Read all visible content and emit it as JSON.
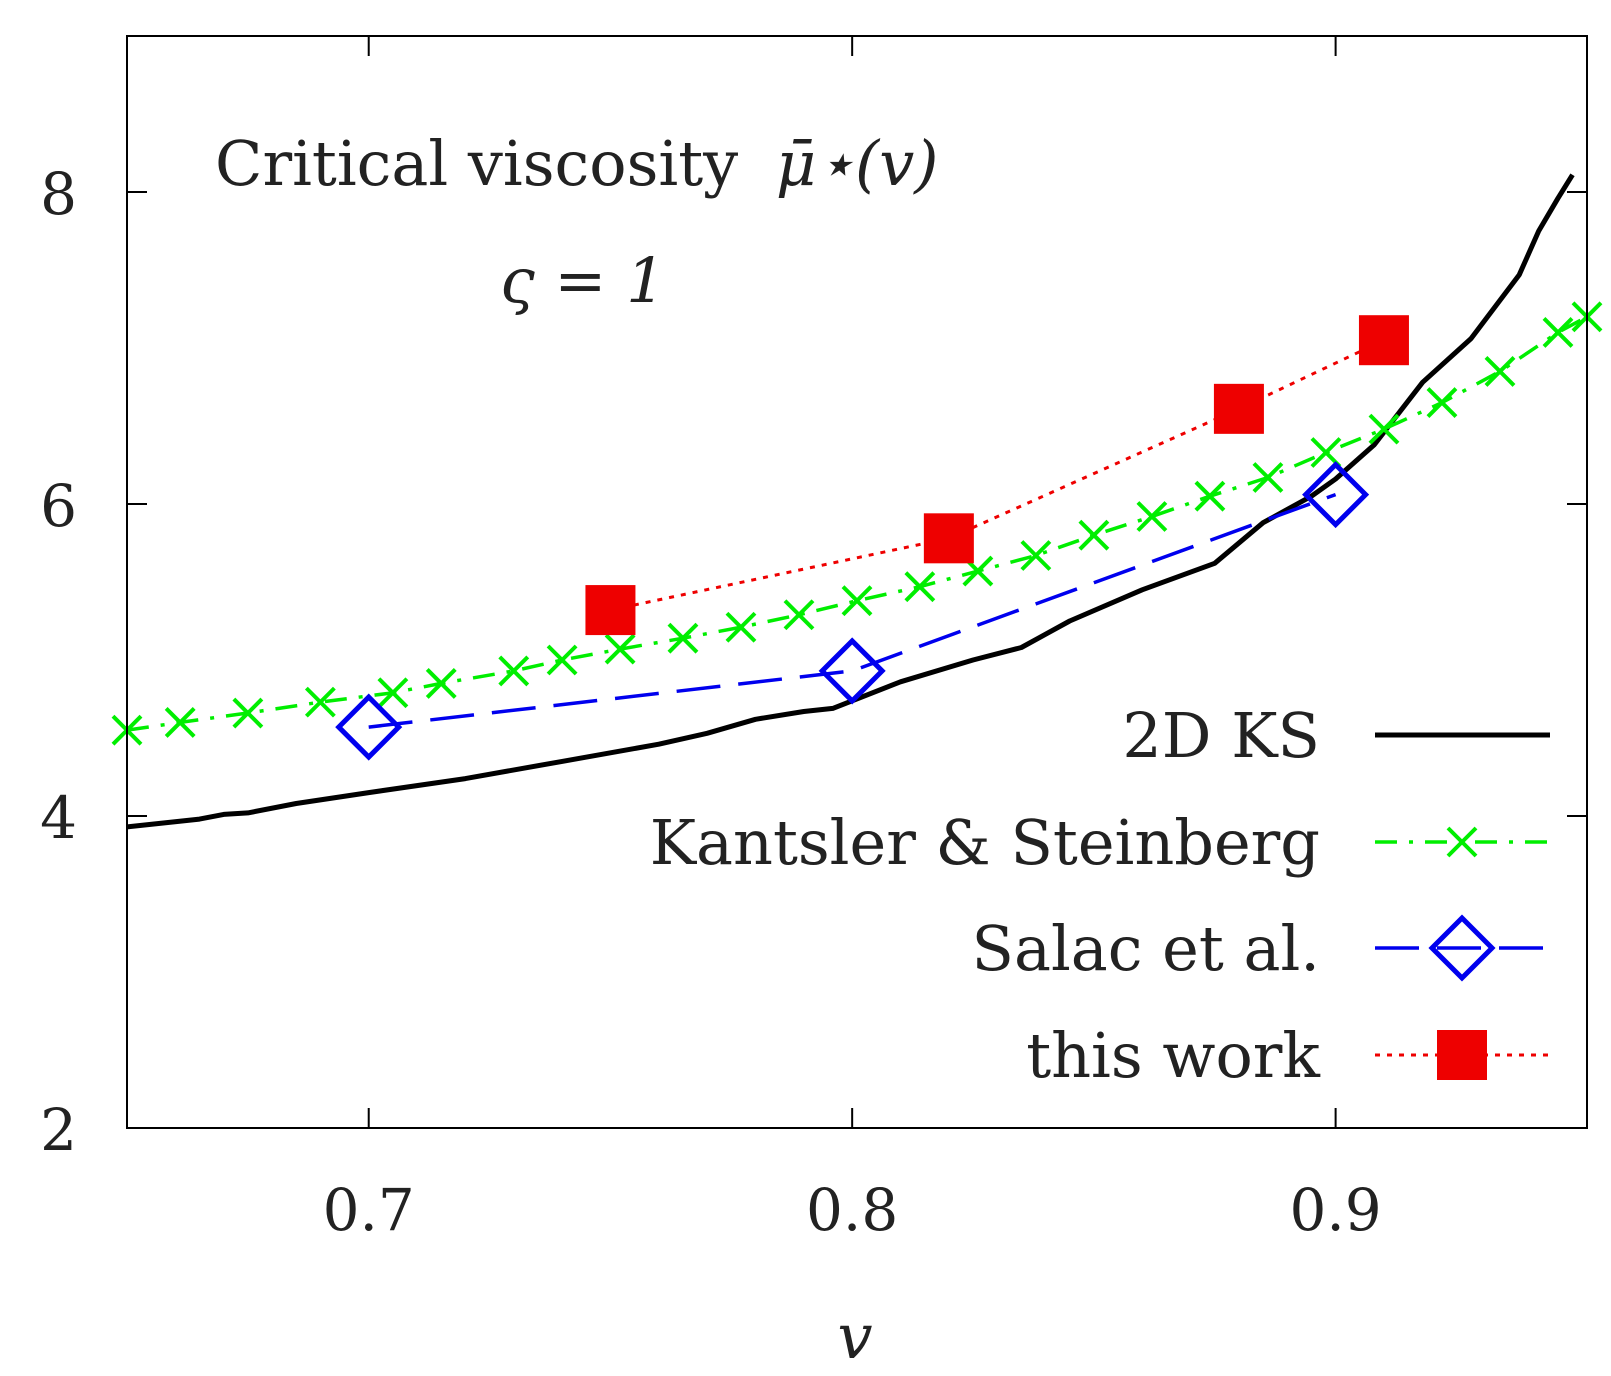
{
  "chart_data": {
    "type": "line",
    "title": "",
    "annotations": {
      "line1_text": "Critical viscosity",
      "line1_math": "μ̄⋆(v)",
      "line2_math": "ς = 1"
    },
    "xlabel": "v",
    "ylabel": "",
    "xlim": [
      0.65,
      0.952
    ],
    "ylim": [
      2,
      9
    ],
    "x_ticks": [
      0.7,
      0.8,
      0.9
    ],
    "x_tick_labels": [
      "0.7",
      "0.8",
      "0.9"
    ],
    "y_ticks": [
      2,
      4,
      6,
      8
    ],
    "y_tick_labels": [
      "2",
      "4",
      "6",
      "8"
    ],
    "legend_position": "bottom-right",
    "series": [
      {
        "name": "2D KS",
        "color": "#000000",
        "style": "solid",
        "marker": "none",
        "x": [
          0.65,
          0.665,
          0.67,
          0.675,
          0.685,
          0.7,
          0.72,
          0.74,
          0.76,
          0.77,
          0.78,
          0.79,
          0.796,
          0.81,
          0.825,
          0.835,
          0.845,
          0.86,
          0.875,
          0.885,
          0.895,
          0.9,
          0.908,
          0.918,
          0.928,
          0.938,
          0.942,
          0.946,
          0.949
        ],
        "y": [
          3.93,
          3.98,
          4.01,
          4.02,
          4.08,
          4.15,
          4.24,
          4.35,
          4.46,
          4.53,
          4.62,
          4.67,
          4.69,
          4.86,
          5.0,
          5.08,
          5.25,
          5.45,
          5.62,
          5.88,
          6.05,
          6.16,
          6.38,
          6.78,
          7.06,
          7.47,
          7.75,
          7.96,
          8.11
        ]
      },
      {
        "name": "Kantsler & Steinberg",
        "color": "#00ee00",
        "style": "dash-dot",
        "marker": "x",
        "x": [
          0.65,
          0.661,
          0.675,
          0.69,
          0.705,
          0.715,
          0.73,
          0.74,
          0.752,
          0.765,
          0.777,
          0.789,
          0.801,
          0.814,
          0.826,
          0.838,
          0.85,
          0.862,
          0.874,
          0.886,
          0.898,
          0.91,
          0.922,
          0.934,
          0.946,
          0.952
        ],
        "y": [
          4.55,
          4.6,
          4.66,
          4.73,
          4.79,
          4.85,
          4.93,
          5.0,
          5.07,
          5.14,
          5.21,
          5.29,
          5.38,
          5.47,
          5.57,
          5.67,
          5.8,
          5.92,
          6.05,
          6.17,
          6.33,
          6.48,
          6.65,
          6.85,
          7.1,
          7.2
        ]
      },
      {
        "name": "Salac et al.",
        "color": "#0000ee",
        "style": "dashed",
        "marker": "diamond",
        "x": [
          0.7,
          0.8,
          0.9
        ],
        "y": [
          4.57,
          4.93,
          6.06
        ]
      },
      {
        "name": "this work",
        "color": "#ee0000",
        "style": "dotted",
        "marker": "square",
        "x": [
          0.75,
          0.82,
          0.88,
          0.91
        ],
        "y": [
          5.32,
          5.78,
          6.61,
          7.05
        ]
      }
    ]
  }
}
